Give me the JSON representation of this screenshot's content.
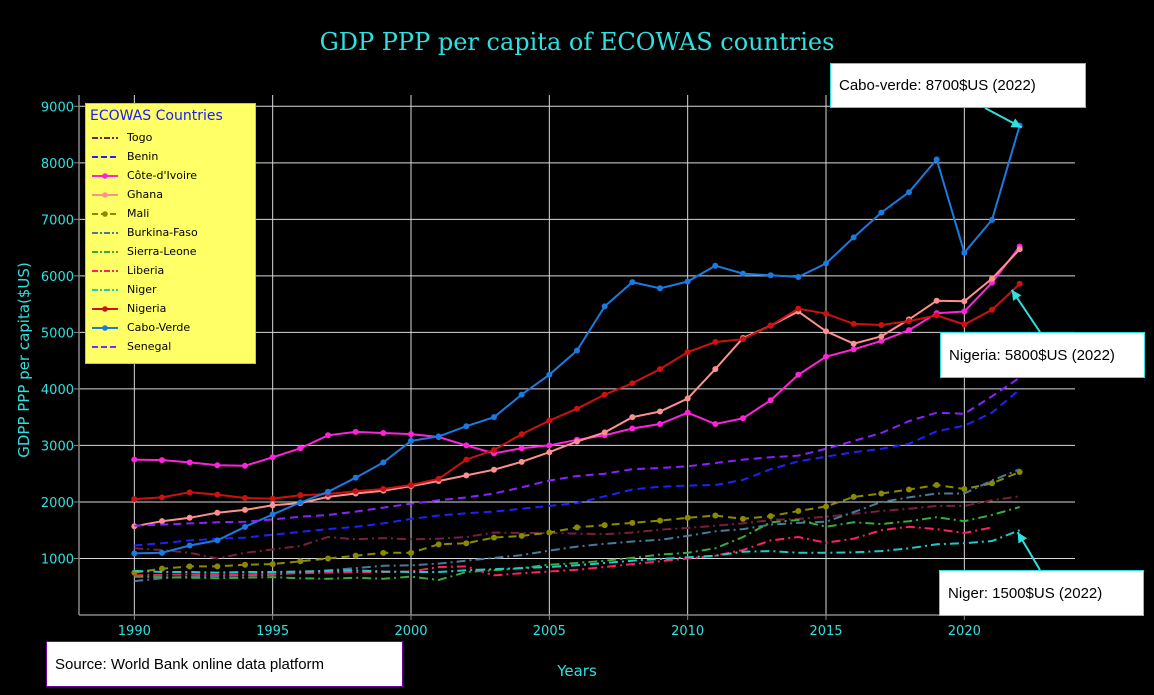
{
  "chart_data": {
    "type": "line",
    "title": "GDP PPP per capita of ECOWAS  countries",
    "xlabel": "Years",
    "ylabel": "GDPP PPP per capita($US)",
    "xlim": [
      1988,
      2024
    ],
    "ylim": [
      0,
      9200
    ],
    "xticks": [
      1990,
      1995,
      2000,
      2005,
      2010,
      2015,
      2020
    ],
    "yticks": [
      1000,
      2000,
      3000,
      4000,
      5000,
      6000,
      7000,
      8000,
      9000
    ],
    "grid": true,
    "legend_title": "ECOWAS Countries",
    "legend_position": "top-left",
    "x": [
      1990,
      1991,
      1992,
      1993,
      1994,
      1995,
      1996,
      1997,
      1998,
      1999,
      2000,
      2001,
      2002,
      2003,
      2004,
      2005,
      2006,
      2007,
      2008,
      2009,
      2010,
      2011,
      2012,
      2013,
      2014,
      2015,
      2016,
      2017,
      2018,
      2019,
      2020,
      2021,
      2022
    ],
    "series": [
      {
        "name": "Togo",
        "color": "#7a1f3d",
        "dash": "dashdot",
        "marker": false,
        "values": [
          1180,
          1150,
          1100,
          1000,
          1100,
          1160,
          1220,
          1380,
          1340,
          1360,
          1340,
          1350,
          1380,
          1460,
          1450,
          1450,
          1440,
          1430,
          1460,
          1510,
          1540,
          1580,
          1620,
          1680,
          1700,
          1740,
          1790,
          1840,
          1880,
          1930,
          1930,
          2030,
          2100
        ]
      },
      {
        "name": "Benin",
        "color": "#2020ff",
        "dash": "dash",
        "marker": false,
        "values": [
          1230,
          1270,
          1320,
          1350,
          1370,
          1420,
          1470,
          1520,
          1560,
          1620,
          1700,
          1760,
          1800,
          1830,
          1880,
          1930,
          1980,
          2100,
          2220,
          2270,
          2290,
          2300,
          2390,
          2580,
          2720,
          2800,
          2880,
          2940,
          3030,
          3250,
          3350,
          3580,
          3990
        ]
      },
      {
        "name": "Côte-d'Ivoire",
        "color": "#ff22dd",
        "dash": "solid",
        "marker": true,
        "values": [
          2750,
          2740,
          2700,
          2650,
          2640,
          2790,
          2950,
          3180,
          3240,
          3220,
          3200,
          3150,
          3000,
          2860,
          2950,
          3000,
          3100,
          3180,
          3300,
          3380,
          3580,
          3380,
          3480,
          3800,
          4250,
          4570,
          4700,
          4850,
          5040,
          5340,
          5370,
          5880,
          6520
        ]
      },
      {
        "name": "Ghana",
        "color": "#ff9090",
        "dash": "solid",
        "marker": true,
        "values": [
          1570,
          1660,
          1720,
          1810,
          1860,
          1940,
          1980,
          2090,
          2150,
          2200,
          2280,
          2370,
          2470,
          2570,
          2710,
          2880,
          3070,
          3230,
          3500,
          3600,
          3830,
          4350,
          4900,
          5120,
          5370,
          5020,
          4800,
          4930,
          5230,
          5560,
          5550,
          5950,
          6470
        ]
      },
      {
        "name": "Mali",
        "color": "#8a8a00",
        "dash": "dash",
        "marker": true,
        "values": [
          750,
          820,
          860,
          860,
          890,
          900,
          950,
          1000,
          1050,
          1100,
          1100,
          1250,
          1270,
          1370,
          1400,
          1460,
          1550,
          1590,
          1630,
          1670,
          1720,
          1760,
          1700,
          1750,
          1840,
          1920,
          2090,
          2150,
          2220,
          2300,
          2230,
          2330,
          2530
        ]
      },
      {
        "name": "Burkina-Faso",
        "color": "#4a7a9a",
        "dash": "dashdot",
        "marker": false,
        "values": [
          600,
          650,
          680,
          690,
          700,
          710,
          750,
          790,
          830,
          870,
          880,
          910,
          960,
          1010,
          1060,
          1140,
          1210,
          1260,
          1300,
          1330,
          1400,
          1480,
          1520,
          1600,
          1630,
          1650,
          1820,
          2000,
          2080,
          2150,
          2150,
          2380,
          2580
        ]
      },
      {
        "name": "Sierra-Leone",
        "color": "#3aaa3a",
        "dash": "dashdot",
        "marker": false,
        "values": [
          680,
          670,
          660,
          650,
          660,
          670,
          650,
          640,
          660,
          640,
          680,
          620,
          760,
          790,
          830,
          890,
          920,
          960,
          1010,
          1070,
          1100,
          1180,
          1380,
          1640,
          1680,
          1560,
          1640,
          1610,
          1660,
          1730,
          1660,
          1770,
          1910
        ]
      },
      {
        "name": "Liberia",
        "color": "#ff2060",
        "dash": "dashdot",
        "marker": false,
        "values": [
          700,
          710,
          720,
          710,
          720,
          730,
          740,
          750,
          760,
          760,
          770,
          850,
          860,
          700,
          740,
          770,
          800,
          850,
          900,
          950,
          1000,
          1050,
          1150,
          1320,
          1380,
          1280,
          1350,
          1500,
          1560,
          1520,
          1450,
          1550,
          null
        ]
      },
      {
        "name": "Niger",
        "color": "#20c8c8",
        "dash": "dashdot",
        "marker": false,
        "values": [
          780,
          760,
          760,
          750,
          760,
          760,
          770,
          780,
          790,
          770,
          760,
          760,
          790,
          810,
          830,
          850,
          880,
          920,
          960,
          990,
          1020,
          1050,
          1120,
          1130,
          1100,
          1100,
          1110,
          1130,
          1180,
          1250,
          1270,
          1310,
          1500
        ]
      },
      {
        "name": "Nigeria",
        "color": "#cc1111",
        "dash": "solid",
        "marker": true,
        "values": [
          2050,
          2080,
          2170,
          2130,
          2070,
          2060,
          2120,
          2140,
          2190,
          2230,
          2300,
          2410,
          2750,
          2920,
          3200,
          3440,
          3650,
          3900,
          4100,
          4350,
          4650,
          4830,
          4880,
          5120,
          5420,
          5330,
          5150,
          5130,
          5200,
          5300,
          5140,
          5400,
          5860
        ]
      },
      {
        "name": "Cabo-Verde",
        "color": "#1a7ae0",
        "dash": "solid",
        "marker": true,
        "values": [
          1090,
          1100,
          1230,
          1320,
          1560,
          1780,
          1990,
          2180,
          2430,
          2700,
          3080,
          3160,
          3340,
          3500,
          3900,
          4250,
          4680,
          5460,
          5890,
          5780,
          5900,
          6180,
          6040,
          6010,
          5980,
          6220,
          6680,
          7120,
          7480,
          8060,
          6410,
          6990,
          8660
        ]
      },
      {
        "name": "Senegal",
        "color": "#8a22ff",
        "dash": "dash",
        "marker": false,
        "values": [
          1580,
          1600,
          1620,
          1640,
          1650,
          1690,
          1740,
          1770,
          1830,
          1900,
          1970,
          2030,
          2080,
          2150,
          2260,
          2380,
          2460,
          2500,
          2580,
          2600,
          2630,
          2690,
          2750,
          2790,
          2820,
          2940,
          3080,
          3220,
          3430,
          3580,
          3560,
          3870,
          4200
        ]
      }
    ]
  },
  "annotations": {
    "cabo": "Cabo-verde: 8700$US (2022)",
    "nigeria": "Nigeria: 5800$US (2022)",
    "niger": "Niger: 1500$US (2022)"
  },
  "source": "Source: World Bank online data platform"
}
